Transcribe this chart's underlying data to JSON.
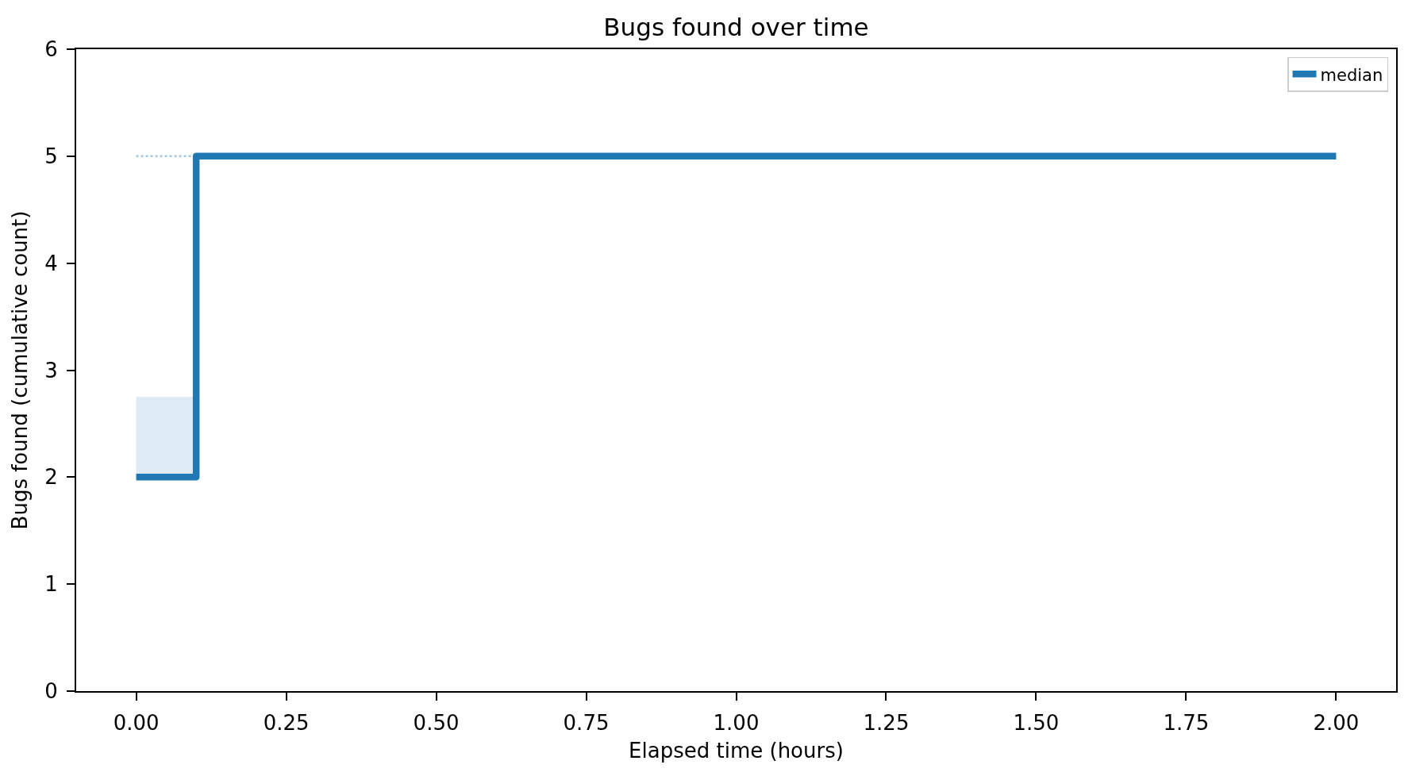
{
  "chart_data": {
    "type": "step",
    "title": "Bugs found over time",
    "xlabel": "Elapsed time (hours)",
    "ylabel": "Bugs found (cumulative count)",
    "x": [
      0,
      0.1,
      2.0
    ],
    "series": [
      {
        "color": "#a6c8e1",
        "x": [
          0,
          0.1
        ],
        "values": [
          5,
          5
        ],
        "line_style": "dotted"
      },
      {
        "name": "median",
        "color": "#1f77b4",
        "values": [
          2,
          5,
          5
        ],
        "lower": [
          2,
          5,
          5
        ],
        "upper": [
          2.75,
          5,
          5
        ],
        "line_style": "solid"
      }
    ],
    "xlim": [
      -0.1,
      2.1
    ],
    "ylim": [
      0,
      6
    ],
    "xticks": [
      {
        "value": 0,
        "label": "0.00"
      },
      {
        "value": 0.25,
        "label": "0.25"
      },
      {
        "value": 0.5,
        "label": "0.50"
      },
      {
        "value": 0.75,
        "label": "0.75"
      },
      {
        "value": 1,
        "label": "1.00"
      },
      {
        "value": 1.25,
        "label": "1.25"
      },
      {
        "value": 1.5,
        "label": "1.50"
      },
      {
        "value": 1.75,
        "label": "1.75"
      },
      {
        "value": 2,
        "label": "2.00"
      }
    ],
    "yticks": [
      0,
      1,
      2,
      3,
      4,
      5,
      6
    ],
    "grid": false,
    "legend": "top right",
    "marker": "none"
  }
}
